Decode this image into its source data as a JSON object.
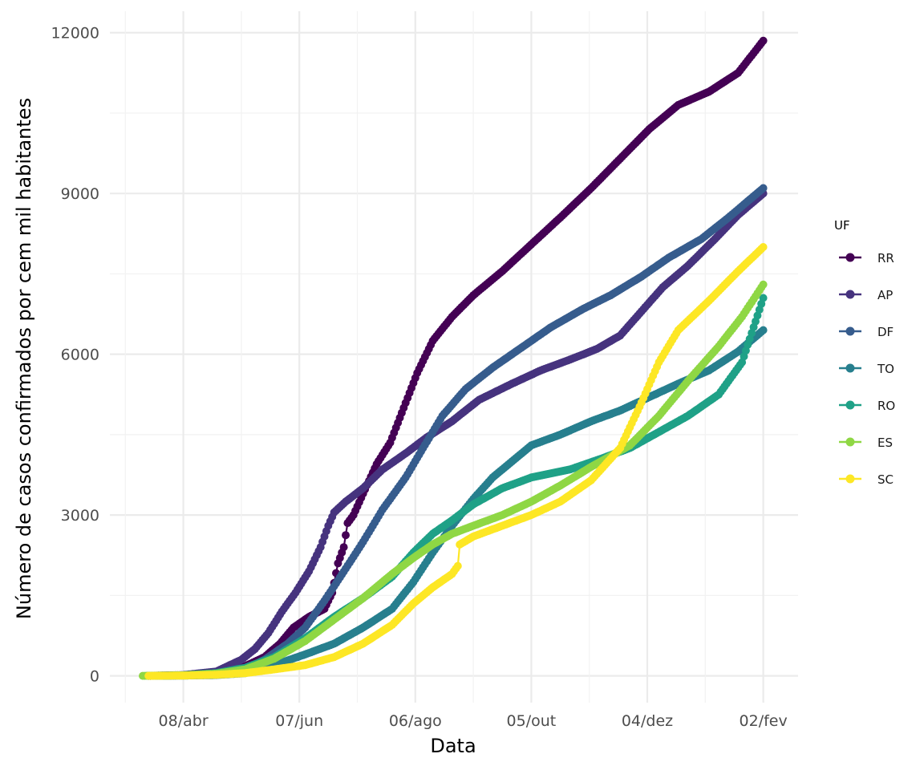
{
  "chart_data": {
    "type": "line",
    "xlabel": "Data",
    "ylabel": "Número de casos confirmados por cem mil habitantes",
    "x_axis": {
      "type": "date",
      "range": [
        "2020-03-01",
        "2021-02-20"
      ],
      "ticks": [
        {
          "date": "2020-04-08",
          "label": "08/abr"
        },
        {
          "date": "2020-06-07",
          "label": "07/jun"
        },
        {
          "date": "2020-08-06",
          "label": "06/ago"
        },
        {
          "date": "2020-10-05",
          "label": "05/out"
        },
        {
          "date": "2020-12-04",
          "label": "04/dez"
        },
        {
          "date": "2021-02-02",
          "label": "02/fev"
        }
      ]
    },
    "y_axis": {
      "range": [
        -500,
        12400
      ],
      "ticks": [
        0,
        3000,
        6000,
        9000,
        12000
      ]
    },
    "grid": true,
    "legend": {
      "title": "UF",
      "position": "right"
    },
    "markers": true,
    "series": [
      {
        "name": "RR",
        "color": "#440154",
        "points": [
          [
            "2020-03-21",
            0
          ],
          [
            "2020-04-08",
            10
          ],
          [
            "2020-04-25",
            60
          ],
          [
            "2020-05-10",
            180
          ],
          [
            "2020-05-20",
            350
          ],
          [
            "2020-05-28",
            600
          ],
          [
            "2020-06-04",
            900
          ],
          [
            "2020-06-12",
            1100
          ],
          [
            "2020-06-20",
            1250
          ],
          [
            "2020-06-24",
            1550
          ],
          [
            "2020-06-27",
            2100
          ],
          [
            "2020-06-30",
            2400
          ],
          [
            "2020-07-02",
            2850
          ],
          [
            "2020-07-05",
            3000
          ],
          [
            "2020-07-10",
            3400
          ],
          [
            "2020-07-17",
            3950
          ],
          [
            "2020-07-24",
            4350
          ],
          [
            "2020-07-31",
            5000
          ],
          [
            "2020-08-07",
            5650
          ],
          [
            "2020-08-15",
            6250
          ],
          [
            "2020-08-25",
            6700
          ],
          [
            "2020-09-05",
            7100
          ],
          [
            "2020-09-20",
            7550
          ],
          [
            "2020-10-05",
            8050
          ],
          [
            "2020-10-20",
            8550
          ],
          [
            "2020-11-05",
            9100
          ],
          [
            "2020-11-20",
            9650
          ],
          [
            "2020-12-05",
            10200
          ],
          [
            "2020-12-20",
            10650
          ],
          [
            "2021-01-05",
            10900
          ],
          [
            "2021-01-20",
            11250
          ],
          [
            "2021-02-02",
            11850
          ]
        ]
      },
      {
        "name": "AP",
        "color": "#46337E",
        "points": [
          [
            "2020-03-21",
            0
          ],
          [
            "2020-04-08",
            15
          ],
          [
            "2020-04-25",
            80
          ],
          [
            "2020-05-08",
            300
          ],
          [
            "2020-05-15",
            500
          ],
          [
            "2020-05-22",
            800
          ],
          [
            "2020-05-29",
            1200
          ],
          [
            "2020-06-05",
            1550
          ],
          [
            "2020-06-12",
            1950
          ],
          [
            "2020-06-18",
            2400
          ],
          [
            "2020-06-22",
            2800
          ],
          [
            "2020-06-25",
            3050
          ],
          [
            "2020-07-01",
            3250
          ],
          [
            "2020-07-10",
            3500
          ],
          [
            "2020-07-20",
            3850
          ],
          [
            "2020-08-01",
            4150
          ],
          [
            "2020-08-12",
            4450
          ],
          [
            "2020-08-25",
            4750
          ],
          [
            "2020-09-08",
            5150
          ],
          [
            "2020-09-25",
            5450
          ],
          [
            "2020-10-10",
            5700
          ],
          [
            "2020-10-25",
            5900
          ],
          [
            "2020-11-08",
            6100
          ],
          [
            "2020-11-20",
            6350
          ],
          [
            "2020-12-01",
            6800
          ],
          [
            "2020-12-12",
            7250
          ],
          [
            "2020-12-25",
            7650
          ],
          [
            "2021-01-08",
            8150
          ],
          [
            "2021-01-20",
            8600
          ],
          [
            "2021-02-02",
            9000
          ]
        ]
      },
      {
        "name": "DF",
        "color": "#365C8D",
        "points": [
          [
            "2020-03-21",
            0
          ],
          [
            "2020-04-08",
            8
          ],
          [
            "2020-04-25",
            30
          ],
          [
            "2020-05-10",
            120
          ],
          [
            "2020-05-20",
            300
          ],
          [
            "2020-06-01",
            600
          ],
          [
            "2020-06-10",
            900
          ],
          [
            "2020-06-20",
            1400
          ],
          [
            "2020-07-01",
            2000
          ],
          [
            "2020-07-10",
            2500
          ],
          [
            "2020-07-20",
            3100
          ],
          [
            "2020-08-01",
            3700
          ],
          [
            "2020-08-10",
            4250
          ],
          [
            "2020-08-20",
            4850
          ],
          [
            "2020-09-01",
            5350
          ],
          [
            "2020-09-15",
            5750
          ],
          [
            "2020-10-01",
            6150
          ],
          [
            "2020-10-15",
            6500
          ],
          [
            "2020-11-01",
            6850
          ],
          [
            "2020-11-15",
            7100
          ],
          [
            "2020-12-01",
            7450
          ],
          [
            "2020-12-15",
            7800
          ],
          [
            "2021-01-01",
            8150
          ],
          [
            "2021-01-15",
            8550
          ],
          [
            "2021-02-02",
            9100
          ]
        ]
      },
      {
        "name": "TO",
        "color": "#277F8E",
        "points": [
          [
            "2020-03-21",
            0
          ],
          [
            "2020-04-08",
            5
          ],
          [
            "2020-04-25",
            15
          ],
          [
            "2020-05-10",
            50
          ],
          [
            "2020-05-25",
            200
          ],
          [
            "2020-06-10",
            400
          ],
          [
            "2020-06-25",
            600
          ],
          [
            "2020-07-10",
            900
          ],
          [
            "2020-07-25",
            1250
          ],
          [
            "2020-08-05",
            1750
          ],
          [
            "2020-08-15",
            2300
          ],
          [
            "2020-08-25",
            2800
          ],
          [
            "2020-09-05",
            3300
          ],
          [
            "2020-09-15",
            3700
          ],
          [
            "2020-09-25",
            4000
          ],
          [
            "2020-10-05",
            4300
          ],
          [
            "2020-10-20",
            4500
          ],
          [
            "2020-11-05",
            4750
          ],
          [
            "2020-11-20",
            4950
          ],
          [
            "2020-12-05",
            5200
          ],
          [
            "2020-12-20",
            5450
          ],
          [
            "2021-01-05",
            5700
          ],
          [
            "2021-01-20",
            6050
          ],
          [
            "2021-02-02",
            6450
          ]
        ]
      },
      {
        "name": "RO",
        "color": "#1FA187",
        "points": [
          [
            "2020-03-21",
            0
          ],
          [
            "2020-04-08",
            10
          ],
          [
            "2020-04-25",
            50
          ],
          [
            "2020-05-10",
            150
          ],
          [
            "2020-05-25",
            350
          ],
          [
            "2020-06-10",
            700
          ],
          [
            "2020-06-25",
            1100
          ],
          [
            "2020-07-10",
            1450
          ],
          [
            "2020-07-25",
            1850
          ],
          [
            "2020-08-05",
            2300
          ],
          [
            "2020-08-15",
            2650
          ],
          [
            "2020-08-25",
            2900
          ],
          [
            "2020-09-05",
            3200
          ],
          [
            "2020-09-20",
            3500
          ],
          [
            "2020-10-05",
            3700
          ],
          [
            "2020-10-25",
            3850
          ],
          [
            "2020-11-10",
            4050
          ],
          [
            "2020-11-25",
            4250
          ],
          [
            "2020-12-10",
            4550
          ],
          [
            "2020-12-25",
            4850
          ],
          [
            "2021-01-10",
            5250
          ],
          [
            "2021-01-22",
            5850
          ],
          [
            "2021-02-02",
            7050
          ]
        ]
      },
      {
        "name": "ES",
        "color": "#8FD744",
        "points": [
          [
            "2020-03-18",
            0
          ],
          [
            "2020-04-08",
            10
          ],
          [
            "2020-04-25",
            40
          ],
          [
            "2020-05-10",
            120
          ],
          [
            "2020-05-25",
            320
          ],
          [
            "2020-06-10",
            650
          ],
          [
            "2020-06-25",
            1050
          ],
          [
            "2020-07-10",
            1450
          ],
          [
            "2020-07-25",
            1900
          ],
          [
            "2020-08-05",
            2200
          ],
          [
            "2020-08-15",
            2450
          ],
          [
            "2020-08-25",
            2650
          ],
          [
            "2020-09-05",
            2800
          ],
          [
            "2020-09-20",
            3000
          ],
          [
            "2020-10-05",
            3250
          ],
          [
            "2020-10-20",
            3550
          ],
          [
            "2020-11-05",
            3900
          ],
          [
            "2020-11-25",
            4300
          ],
          [
            "2020-12-10",
            4850
          ],
          [
            "2020-12-25",
            5500
          ],
          [
            "2021-01-10",
            6150
          ],
          [
            "2021-01-22",
            6700
          ],
          [
            "2021-02-02",
            7300
          ]
        ]
      },
      {
        "name": "SC",
        "color": "#FDE725",
        "points": [
          [
            "2020-03-21",
            0
          ],
          [
            "2020-04-08",
            5
          ],
          [
            "2020-04-25",
            20
          ],
          [
            "2020-05-10",
            50
          ],
          [
            "2020-05-25",
            120
          ],
          [
            "2020-06-10",
            200
          ],
          [
            "2020-06-25",
            350
          ],
          [
            "2020-07-10",
            600
          ],
          [
            "2020-07-25",
            950
          ],
          [
            "2020-08-05",
            1350
          ],
          [
            "2020-08-15",
            1650
          ],
          [
            "2020-08-25",
            1900
          ],
          [
            "2020-08-28",
            2050
          ],
          [
            "2020-08-29",
            2450
          ],
          [
            "2020-09-05",
            2600
          ],
          [
            "2020-09-20",
            2800
          ],
          [
            "2020-10-05",
            3000
          ],
          [
            "2020-10-20",
            3250
          ],
          [
            "2020-11-05",
            3650
          ],
          [
            "2020-11-20",
            4250
          ],
          [
            "2020-12-01",
            5100
          ],
          [
            "2020-12-10",
            5850
          ],
          [
            "2020-12-20",
            6450
          ],
          [
            "2021-01-05",
            7000
          ],
          [
            "2021-01-20",
            7550
          ],
          [
            "2021-02-02",
            8000
          ]
        ]
      }
    ]
  }
}
